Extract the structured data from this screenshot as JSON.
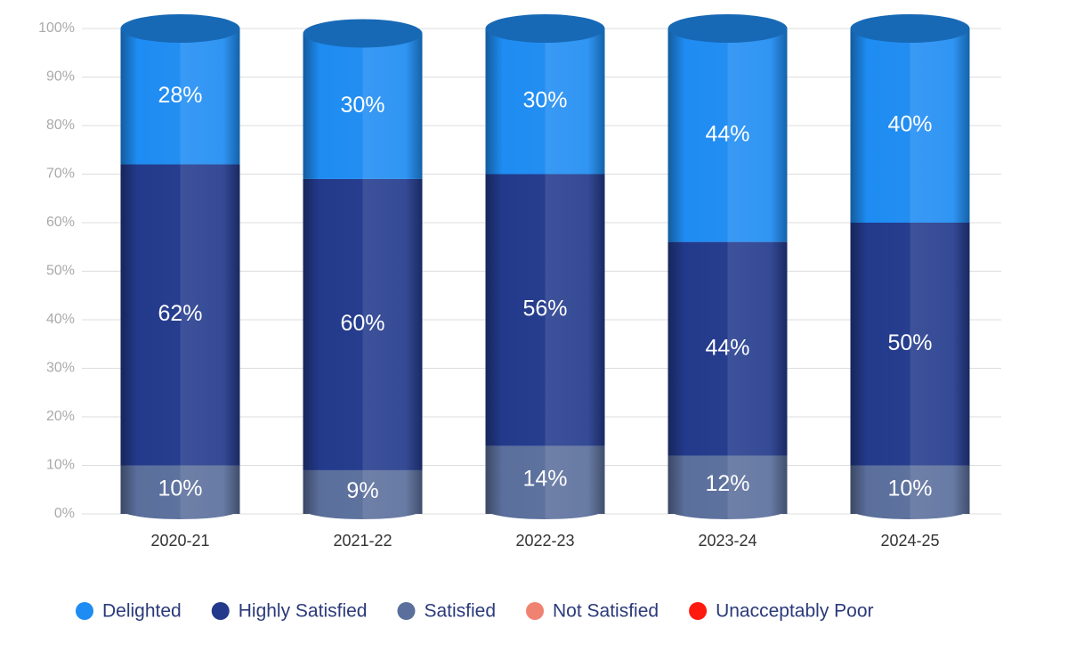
{
  "chart_data": {
    "type": "stacked_bar",
    "categories": [
      "2020-21",
      "2021-22",
      "2022-23",
      "2023-24",
      "2024-25"
    ],
    "series": [
      {
        "name": "Satisfied",
        "color": "#5b6f9c",
        "values": [
          10,
          9,
          14,
          12,
          10
        ],
        "value_labels": [
          "10%",
          "9%",
          "14%",
          "12%",
          "10%"
        ]
      },
      {
        "name": "Highly Satisfied",
        "color": "#233a8c",
        "values": [
          62,
          60,
          56,
          44,
          50
        ],
        "value_labels": [
          "62%",
          "60%",
          "56%",
          "44%",
          "50%"
        ]
      },
      {
        "name": "Delighted",
        "color": "#1e8cf2",
        "values": [
          28,
          30,
          30,
          44,
          40
        ],
        "value_labels": [
          "28%",
          "30%",
          "30%",
          "44%",
          "40%"
        ]
      },
      {
        "name": "Not Satisfied",
        "color": "#f08272",
        "values": [
          0,
          0,
          0,
          0,
          0
        ]
      },
      {
        "name": "Unacceptably Poor",
        "color": "#ff1a10",
        "values": [
          0,
          0,
          0,
          0,
          0
        ]
      }
    ],
    "legend_order": [
      2,
      1,
      0,
      3,
      4
    ],
    "ylim": [
      0,
      100
    ],
    "yticks": [
      {
        "value": 0,
        "label": "0%"
      },
      {
        "value": 10,
        "label": "10%"
      },
      {
        "value": 20,
        "label": "20%"
      },
      {
        "value": 30,
        "label": "30%"
      },
      {
        "value": 40,
        "label": "40%"
      },
      {
        "value": 50,
        "label": "50%"
      },
      {
        "value": 60,
        "label": "60%"
      },
      {
        "value": 70,
        "label": "70%"
      },
      {
        "value": 80,
        "label": "80%"
      },
      {
        "value": 90,
        "label": "90%"
      },
      {
        "value": 100,
        "label": "100%"
      }
    ],
    "grid": true,
    "legend": "bottom"
  }
}
